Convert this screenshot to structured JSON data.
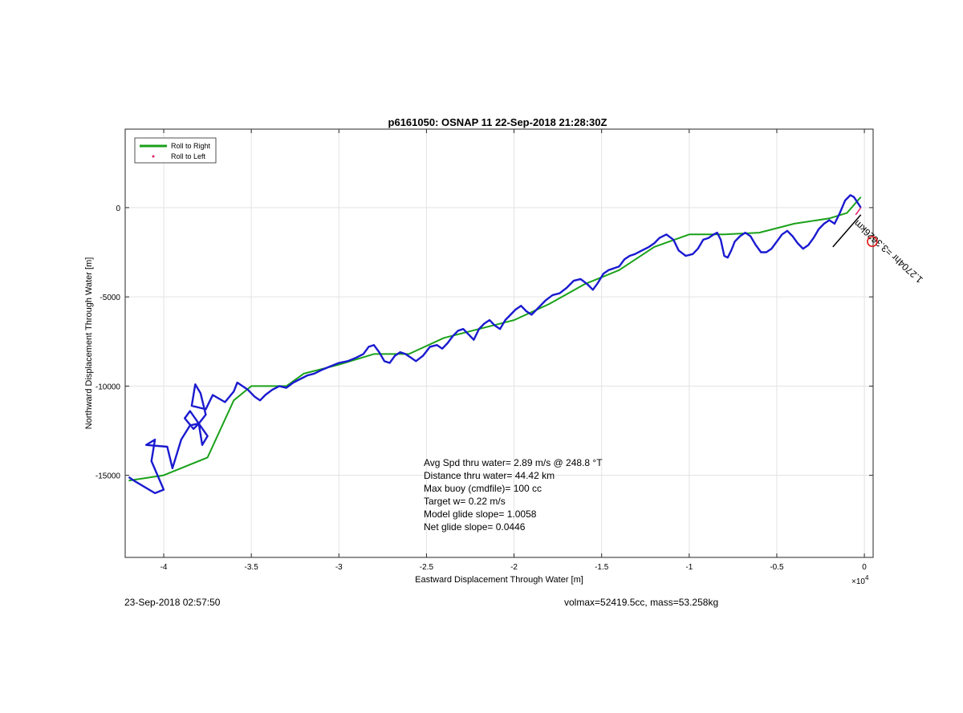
{
  "chart_data": {
    "type": "line",
    "title": "p6161050: OSNAP 11 22-Sep-2018 21:28:30Z",
    "xlabel": "Eastward Displacement Through Water [m]",
    "ylabel": "Northward Displacement Through Water [m]",
    "x_multiplier_label": "×10",
    "x_multiplier_exp": "4",
    "xlim": [
      -4.22,
      0.05
    ],
    "ylim": [
      -19600,
      4400
    ],
    "x_ticks": [
      -4,
      -3.5,
      -3,
      -2.5,
      -2,
      -1.5,
      -1,
      -0.5,
      0
    ],
    "x_tick_labels": [
      "-4",
      "-3.5",
      "-3",
      "-2.5",
      "-2",
      "-1.5",
      "-1",
      "-0.5",
      "0"
    ],
    "y_ticks": [
      0,
      -5000,
      -10000,
      -15000
    ],
    "y_tick_labels": [
      "0",
      "-5000",
      "-10000",
      "-15000"
    ],
    "grid": true,
    "legend_position": "top-left",
    "legend": [
      {
        "label": "Roll to Right",
        "color": "#1aa11a",
        "marker": "line"
      },
      {
        "label": "Roll to Left",
        "color": "#e0206a",
        "marker": "dot"
      }
    ],
    "series": [
      {
        "name": "Roll to Right",
        "color": "#1aa11a",
        "x": [
          -4.2,
          -4.0,
          -3.75,
          -3.6,
          -3.5,
          -3.3,
          -3.2,
          -3.0,
          -2.8,
          -2.6,
          -2.4,
          -2.2,
          -2.0,
          -1.8,
          -1.6,
          -1.4,
          -1.2,
          -1.0,
          -0.8,
          -0.6,
          -0.4,
          -0.2,
          -0.1,
          -0.02
        ],
        "y": [
          -15300,
          -15000,
          -14000,
          -10800,
          -10000,
          -10000,
          -9300,
          -8800,
          -8200,
          -8200,
          -7300,
          -6800,
          -6300,
          -5400,
          -4300,
          -3500,
          -2200,
          -1500,
          -1500,
          -1400,
          -900,
          -600,
          -300,
          600
        ]
      },
      {
        "name": "Trajectory",
        "color": "#1a1ad0",
        "x": [
          -4.2,
          -4.17,
          -4.05,
          -4.0,
          -4.07,
          -4.05,
          -4.1,
          -3.98,
          -3.95,
          -3.9,
          -3.85,
          -3.8,
          -3.78,
          -3.75,
          -3.85,
          -3.88,
          -3.83,
          -3.8,
          -3.76,
          -3.79,
          -3.82,
          -3.84,
          -3.76,
          -3.72,
          -3.65,
          -3.6,
          -3.58,
          -3.52,
          -3.48,
          -3.45,
          -3.42,
          -3.38,
          -3.34,
          -3.3,
          -3.26,
          -3.22,
          -3.18,
          -3.14,
          -3.1,
          -3.05,
          -3.0,
          -2.95,
          -2.9,
          -2.86,
          -2.83,
          -2.8,
          -2.77,
          -2.74,
          -2.71,
          -2.68,
          -2.65,
          -2.62,
          -2.59,
          -2.56,
          -2.52,
          -2.48,
          -2.44,
          -2.41,
          -2.38,
          -2.35,
          -2.32,
          -2.29,
          -2.26,
          -2.23,
          -2.2,
          -2.17,
          -2.14,
          -2.11,
          -2.08,
          -2.05,
          -2.02,
          -1.99,
          -1.96,
          -1.93,
          -1.9,
          -1.86,
          -1.82,
          -1.78,
          -1.74,
          -1.7,
          -1.66,
          -1.62,
          -1.58,
          -1.55,
          -1.52,
          -1.49,
          -1.46,
          -1.43,
          -1.4,
          -1.37,
          -1.34,
          -1.31,
          -1.27,
          -1.23,
          -1.2,
          -1.17,
          -1.13,
          -1.09,
          -1.06,
          -1.02,
          -0.98,
          -0.95,
          -0.92,
          -0.89,
          -0.86,
          -0.84,
          -0.82,
          -0.8,
          -0.78,
          -0.76,
          -0.74,
          -0.71,
          -0.68,
          -0.65,
          -0.62,
          -0.59,
          -0.56,
          -0.53,
          -0.5,
          -0.47,
          -0.44,
          -0.41,
          -0.38,
          -0.35,
          -0.32,
          -0.29,
          -0.26,
          -0.23,
          -0.2,
          -0.17,
          -0.14,
          -0.11,
          -0.08,
          -0.06,
          -0.04,
          -0.02
        ],
        "y": [
          -15100,
          -15300,
          -16000,
          -15800,
          -14200,
          -13000,
          -13300,
          -13400,
          -14600,
          -13000,
          -12200,
          -12100,
          -13300,
          -12800,
          -11400,
          -11800,
          -12400,
          -12100,
          -11600,
          -10400,
          -9900,
          -11100,
          -11300,
          -10500,
          -10900,
          -10300,
          -9800,
          -10200,
          -10600,
          -10800,
          -10500,
          -10200,
          -10000,
          -10100,
          -9800,
          -9600,
          -9400,
          -9300,
          -9100,
          -8900,
          -8700,
          -8600,
          -8400,
          -8200,
          -7800,
          -7700,
          -8100,
          -8600,
          -8700,
          -8300,
          -8100,
          -8200,
          -8400,
          -8600,
          -8300,
          -7800,
          -7700,
          -7900,
          -7600,
          -7200,
          -6900,
          -6800,
          -7100,
          -7400,
          -6800,
          -6500,
          -6300,
          -6600,
          -6800,
          -6300,
          -6000,
          -5700,
          -5500,
          -5800,
          -6000,
          -5600,
          -5200,
          -4900,
          -4800,
          -4500,
          -4100,
          -4000,
          -4300,
          -4600,
          -4200,
          -3700,
          -3500,
          -3400,
          -3300,
          -2900,
          -2700,
          -2600,
          -2400,
          -2200,
          -2000,
          -1700,
          -1500,
          -1800,
          -2400,
          -2700,
          -2600,
          -2300,
          -1800,
          -1700,
          -1500,
          -1400,
          -1800,
          -2700,
          -2800,
          -2400,
          -1900,
          -1600,
          -1400,
          -1600,
          -2100,
          -2500,
          -2500,
          -2300,
          -1900,
          -1500,
          -1300,
          -1600,
          -2000,
          -2300,
          -2100,
          -1700,
          -1200,
          -900,
          -700,
          -900,
          -300,
          400,
          700,
          600,
          300,
          0
        ]
      },
      {
        "name": "Roll to Left",
        "color": "#e0206a",
        "x": [
          -0.05,
          -0.02
        ],
        "y": [
          -400,
          0
        ]
      }
    ],
    "annotations": [
      {
        "text": "Avg Spd thru water=  2.89 m/s @ 248.8 °T"
      },
      {
        "text": "Distance thru water= 44.42 km"
      },
      {
        "text": "Max buoy (cmdfile)= 100 cc"
      },
      {
        "text": "Target w= 0.22 m/s"
      },
      {
        "text": "Model glide slope= 1.0058"
      },
      {
        "text": "Net glide slope= 0.0446"
      }
    ],
    "current_label": "1.2704hr =3.3626km",
    "current_vector": {
      "x": [
        -0.02,
        -0.18
      ],
      "y": [
        -400,
        -2200
      ]
    },
    "target_marker": {
      "x": 0.045,
      "y": -1900,
      "color": "#e01010"
    }
  },
  "footer": {
    "left": "23-Sep-2018 02:57:50",
    "right": "volmax=52419.5cc, mass=53.258kg"
  }
}
